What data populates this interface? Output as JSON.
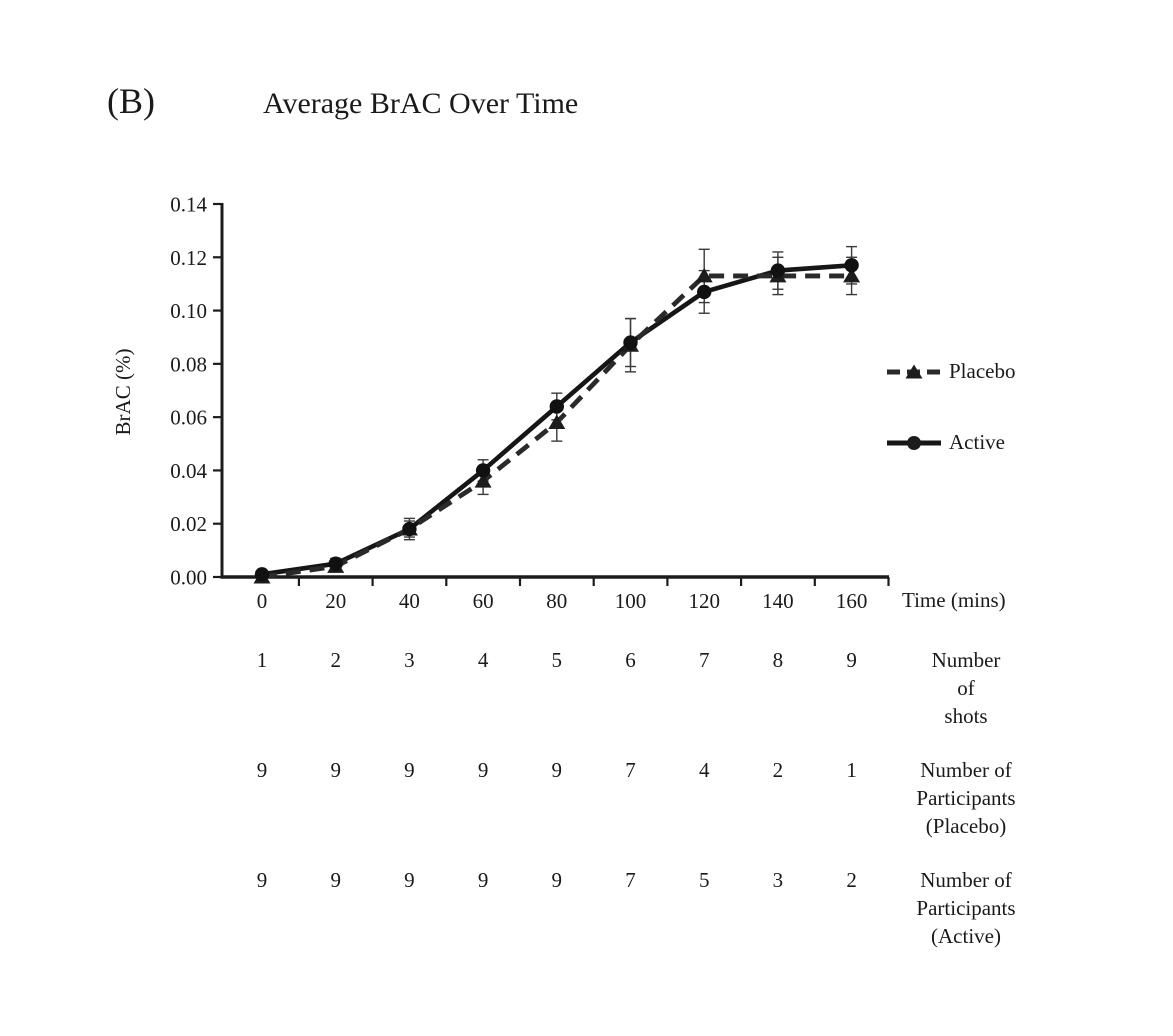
{
  "figure": {
    "panel_label": "(B)"
  },
  "chart_data": {
    "type": "line",
    "title": "Average BrAC Over Time",
    "xlabel": "Time (mins)",
    "ylabel": "BrAC (%)",
    "x": [
      0,
      20,
      40,
      60,
      80,
      100,
      120,
      140,
      160
    ],
    "xtick_labels": [
      "0",
      "20",
      "40",
      "60",
      "80",
      "100",
      "120",
      "140",
      "160"
    ],
    "ylim": [
      0,
      0.14
    ],
    "ytick_labels": [
      "0.00",
      "0.02",
      "0.04",
      "0.06",
      "0.08",
      "0.10",
      "0.12",
      "0.14"
    ],
    "grid": false,
    "error_bars": true,
    "legend_position": "right-outside",
    "line_color": "#1c1c1c",
    "series": [
      {
        "name": "Placebo",
        "line_style": "dashed",
        "marker": "triangle",
        "color": "#2a2a2a",
        "values": [
          0.0,
          0.004,
          0.018,
          0.036,
          0.058,
          0.087,
          0.113,
          0.113,
          0.113
        ],
        "errors": [
          0.001,
          0.002,
          0.004,
          0.005,
          0.007,
          0.01,
          0.01,
          0.007,
          0.007
        ]
      },
      {
        "name": "Active",
        "line_style": "solid",
        "marker": "circle",
        "color": "#161616",
        "values": [
          0.001,
          0.005,
          0.018,
          0.04,
          0.064,
          0.088,
          0.107,
          0.115,
          0.117
        ],
        "errors": [
          0.001,
          0.002,
          0.003,
          0.004,
          0.005,
          0.009,
          0.008,
          0.007,
          0.007
        ]
      }
    ]
  },
  "under_axis_tables": [
    {
      "label": "Number\nof\nshots",
      "values": [
        "1",
        "2",
        "3",
        "4",
        "5",
        "6",
        "7",
        "8",
        "9"
      ]
    },
    {
      "label": "Number of\nParticipants\n(Placebo)",
      "values": [
        "9",
        "9",
        "9",
        "9",
        "9",
        "7",
        "4",
        "2",
        "1"
      ]
    },
    {
      "label": "Number of\nParticipants\n(Active)",
      "values": [
        "9",
        "9",
        "9",
        "9",
        "9",
        "7",
        "5",
        "3",
        "2"
      ]
    }
  ]
}
